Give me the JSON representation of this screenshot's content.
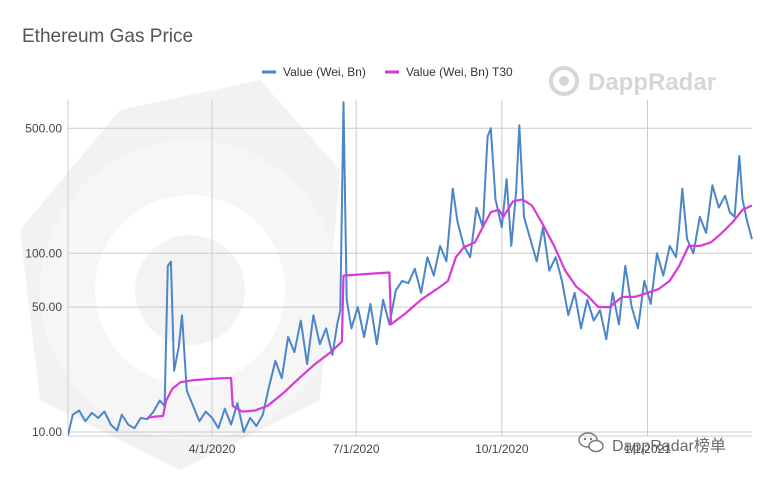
{
  "chart_data": {
    "type": "line",
    "title": "Ethereum Gas Price",
    "y_scale": "log",
    "ylim": [
      9.5,
      720
    ],
    "y_ticks": [
      {
        "value": 10,
        "label": "10.00"
      },
      {
        "value": 50,
        "label": "50.00"
      },
      {
        "value": 100,
        "label": "100.00"
      },
      {
        "value": 500,
        "label": "500.00"
      }
    ],
    "xlim": [
      "2020-01-01",
      "2021-03-08"
    ],
    "x_ticks": [
      {
        "date": "2020-04-01",
        "label": "4/1/2020"
      },
      {
        "date": "2020-07-01",
        "label": "7/1/2020"
      },
      {
        "date": "2020-10-01",
        "label": "10/1/2020"
      },
      {
        "date": "2021-01-01",
        "label": "1/1/2021"
      }
    ],
    "grid": true,
    "legend_position": "top-center",
    "series": [
      {
        "name": "Value (Wei, Bn)",
        "color": "#4a86c8",
        "points": [
          [
            "2020-01-01",
            9.6
          ],
          [
            "2020-01-04",
            12.5
          ],
          [
            "2020-01-08",
            13.2
          ],
          [
            "2020-01-12",
            11.5
          ],
          [
            "2020-01-16",
            12.8
          ],
          [
            "2020-01-20",
            12.0
          ],
          [
            "2020-01-24",
            13.0
          ],
          [
            "2020-01-28",
            11.0
          ],
          [
            "2020-02-01",
            10.2
          ],
          [
            "2020-02-04",
            12.5
          ],
          [
            "2020-02-08",
            11.0
          ],
          [
            "2020-02-12",
            10.5
          ],
          [
            "2020-02-16",
            12.0
          ],
          [
            "2020-02-20",
            11.8
          ],
          [
            "2020-02-24",
            13.0
          ],
          [
            "2020-02-28",
            15.0
          ],
          [
            "2020-03-02",
            14.0
          ],
          [
            "2020-03-04",
            85.0
          ],
          [
            "2020-03-06",
            90.0
          ],
          [
            "2020-03-08",
            22.0
          ],
          [
            "2020-03-11",
            30.0
          ],
          [
            "2020-03-13",
            45.0
          ],
          [
            "2020-03-16",
            17.0
          ],
          [
            "2020-03-20",
            14.0
          ],
          [
            "2020-03-24",
            11.5
          ],
          [
            "2020-03-28",
            13.0
          ],
          [
            "2020-04-01",
            12.0
          ],
          [
            "2020-04-05",
            10.5
          ],
          [
            "2020-04-09",
            13.5
          ],
          [
            "2020-04-13",
            11.0
          ],
          [
            "2020-04-17",
            14.5
          ],
          [
            "2020-04-21",
            10.0
          ],
          [
            "2020-04-25",
            12.0
          ],
          [
            "2020-04-29",
            10.8
          ],
          [
            "2020-05-03",
            12.5
          ],
          [
            "2020-05-07",
            18.0
          ],
          [
            "2020-05-11",
            25.0
          ],
          [
            "2020-05-15",
            20.0
          ],
          [
            "2020-05-19",
            34.0
          ],
          [
            "2020-05-23",
            28.0
          ],
          [
            "2020-05-27",
            42.0
          ],
          [
            "2020-05-31",
            24.0
          ],
          [
            "2020-06-04",
            45.0
          ],
          [
            "2020-06-08",
            31.0
          ],
          [
            "2020-06-12",
            38.0
          ],
          [
            "2020-06-16",
            27.0
          ],
          [
            "2020-06-19",
            40.0
          ],
          [
            "2020-06-21",
            48.0
          ],
          [
            "2020-06-23",
            700.0
          ],
          [
            "2020-06-25",
            55.0
          ],
          [
            "2020-06-28",
            38.0
          ],
          [
            "2020-07-02",
            50.0
          ],
          [
            "2020-07-06",
            34.0
          ],
          [
            "2020-07-10",
            52.0
          ],
          [
            "2020-07-14",
            31.0
          ],
          [
            "2020-07-18",
            55.0
          ],
          [
            "2020-07-22",
            40.0
          ],
          [
            "2020-07-26",
            62.0
          ],
          [
            "2020-07-30",
            70.0
          ],
          [
            "2020-08-03",
            68.0
          ],
          [
            "2020-08-07",
            82.0
          ],
          [
            "2020-08-11",
            60.0
          ],
          [
            "2020-08-15",
            95.0
          ],
          [
            "2020-08-19",
            75.0
          ],
          [
            "2020-08-23",
            110.0
          ],
          [
            "2020-08-27",
            90.0
          ],
          [
            "2020-08-31",
            230.0
          ],
          [
            "2020-09-03",
            150.0
          ],
          [
            "2020-09-07",
            110.0
          ],
          [
            "2020-09-11",
            95.0
          ],
          [
            "2020-09-15",
            180.0
          ],
          [
            "2020-09-19",
            140.0
          ],
          [
            "2020-09-22",
            450.0
          ],
          [
            "2020-09-24",
            500.0
          ],
          [
            "2020-09-27",
            200.0
          ],
          [
            "2020-10-01",
            140.0
          ],
          [
            "2020-10-04",
            260.0
          ],
          [
            "2020-10-07",
            110.0
          ],
          [
            "2020-10-10",
            220.0
          ],
          [
            "2020-10-12",
            520.0
          ],
          [
            "2020-10-15",
            160.0
          ],
          [
            "2020-10-19",
            120.0
          ],
          [
            "2020-10-23",
            90.0
          ],
          [
            "2020-10-27",
            140.0
          ],
          [
            "2020-10-31",
            80.0
          ],
          [
            "2020-11-04",
            95.0
          ],
          [
            "2020-11-08",
            70.0
          ],
          [
            "2020-11-12",
            45.0
          ],
          [
            "2020-11-16",
            60.0
          ],
          [
            "2020-11-20",
            38.0
          ],
          [
            "2020-11-24",
            55.0
          ],
          [
            "2020-11-28",
            42.0
          ],
          [
            "2020-12-02",
            48.0
          ],
          [
            "2020-12-06",
            33.0
          ],
          [
            "2020-12-10",
            60.0
          ],
          [
            "2020-12-14",
            40.0
          ],
          [
            "2020-12-18",
            85.0
          ],
          [
            "2020-12-22",
            50.0
          ],
          [
            "2020-12-26",
            38.0
          ],
          [
            "2020-12-30",
            70.0
          ],
          [
            "2021-01-03",
            52.0
          ],
          [
            "2021-01-07",
            100.0
          ],
          [
            "2021-01-11",
            75.0
          ],
          [
            "2021-01-15",
            110.0
          ],
          [
            "2021-01-19",
            95.0
          ],
          [
            "2021-01-21",
            140.0
          ],
          [
            "2021-01-23",
            230.0
          ],
          [
            "2021-01-26",
            120.0
          ],
          [
            "2021-01-30",
            100.0
          ],
          [
            "2021-02-03",
            160.0
          ],
          [
            "2021-02-07",
            130.0
          ],
          [
            "2021-02-11",
            240.0
          ],
          [
            "2021-02-15",
            180.0
          ],
          [
            "2021-02-19",
            210.0
          ],
          [
            "2021-02-22",
            170.0
          ],
          [
            "2021-02-25",
            160.0
          ],
          [
            "2021-02-28",
            350.0
          ],
          [
            "2021-03-02",
            200.0
          ],
          [
            "2021-03-05",
            150.0
          ],
          [
            "2021-03-08",
            120.0
          ]
        ]
      },
      {
        "name": "Value (Wei, Bn) T30",
        "color": "#d63ad9",
        "points": [
          [
            "2020-02-20",
            12.0
          ],
          [
            "2020-02-25",
            12.2
          ],
          [
            "2020-03-01",
            12.3
          ],
          [
            "2020-03-03",
            15.0
          ],
          [
            "2020-03-07",
            17.5
          ],
          [
            "2020-03-12",
            19.0
          ],
          [
            "2020-03-20",
            19.5
          ],
          [
            "2020-03-30",
            19.8
          ],
          [
            "2020-04-08",
            20.0
          ],
          [
            "2020-04-13",
            20.0
          ],
          [
            "2020-04-14",
            14.0
          ],
          [
            "2020-04-20",
            13.0
          ],
          [
            "2020-04-28",
            13.2
          ],
          [
            "2020-05-06",
            14.0
          ],
          [
            "2020-05-16",
            16.5
          ],
          [
            "2020-05-26",
            20.0
          ],
          [
            "2020-06-05",
            24.0
          ],
          [
            "2020-06-15",
            28.0
          ],
          [
            "2020-06-22",
            32.0
          ],
          [
            "2020-06-23",
            75.0
          ],
          [
            "2020-07-02",
            76.0
          ],
          [
            "2020-07-12",
            77.0
          ],
          [
            "2020-07-22",
            78.0
          ],
          [
            "2020-07-23",
            40.0
          ],
          [
            "2020-08-01",
            46.0
          ],
          [
            "2020-08-11",
            55.0
          ],
          [
            "2020-08-21",
            63.0
          ],
          [
            "2020-08-28",
            70.0
          ],
          [
            "2020-09-02",
            95.0
          ],
          [
            "2020-09-07",
            108.0
          ],
          [
            "2020-09-14",
            115.0
          ],
          [
            "2020-09-19",
            140.0
          ],
          [
            "2020-09-24",
            170.0
          ],
          [
            "2020-09-29",
            175.0
          ],
          [
            "2020-10-02",
            160.0
          ],
          [
            "2020-10-08",
            195.0
          ],
          [
            "2020-10-14",
            200.0
          ],
          [
            "2020-10-20",
            185.0
          ],
          [
            "2020-10-26",
            150.0
          ],
          [
            "2020-11-03",
            110.0
          ],
          [
            "2020-11-10",
            80.0
          ],
          [
            "2020-11-17",
            65.0
          ],
          [
            "2020-11-24",
            58.0
          ],
          [
            "2020-12-01",
            50.0
          ],
          [
            "2020-12-08",
            50.0
          ],
          [
            "2020-12-16",
            57.0
          ],
          [
            "2020-12-24",
            57.0
          ],
          [
            "2021-01-01",
            60.0
          ],
          [
            "2021-01-08",
            63.0
          ],
          [
            "2021-01-15",
            70.0
          ],
          [
            "2021-01-21",
            85.0
          ],
          [
            "2021-01-27",
            110.0
          ],
          [
            "2021-02-03",
            110.0
          ],
          [
            "2021-02-10",
            115.0
          ],
          [
            "2021-02-17",
            130.0
          ],
          [
            "2021-02-24",
            150.0
          ],
          [
            "2021-03-02",
            175.0
          ],
          [
            "2021-03-08",
            185.0
          ]
        ]
      }
    ]
  },
  "watermark": {
    "brand": "DappRadar",
    "caption": "DappRadar榜单"
  }
}
